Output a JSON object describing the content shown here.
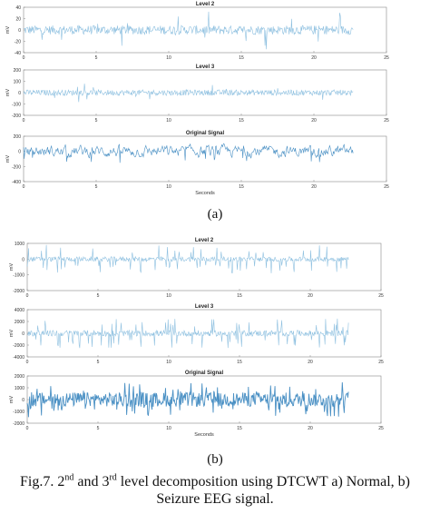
{
  "chart_data": [
    {
      "type": "line",
      "figure_part": "(a)",
      "panels": [
        {
          "title": "Level 2",
          "ylabel": "mV",
          "ylim": [
            -40,
            40
          ],
          "yticks": [
            "40",
            "20",
            "0",
            "-20",
            "-40"
          ],
          "xlim": [
            0,
            25
          ],
          "xticks": [
            "0",
            "5",
            "10",
            "15",
            "20",
            "25"
          ],
          "series": [
            {
              "values": {
                "duration_s": 22.7,
                "amplitude_typical": 8,
                "amplitude_peak": 35
              }
            }
          ]
        },
        {
          "title": "Level 3",
          "ylabel": "mV",
          "ylim": [
            -200,
            200
          ],
          "yticks": [
            "200",
            "100",
            "0",
            "-100",
            "-200"
          ],
          "xlim": [
            0,
            25
          ],
          "xticks": [
            "0",
            "5",
            "10",
            "15",
            "20",
            "25"
          ],
          "series": [
            {
              "values": {
                "duration_s": 22.7,
                "amplitude_typical": 25,
                "amplitude_peak": 90
              }
            }
          ]
        },
        {
          "title": "Original Signal",
          "ylabel": "mV",
          "ylim": [
            -400,
            200
          ],
          "yticks": [
            "200",
            "0",
            "-200",
            "-400"
          ],
          "xlim": [
            0,
            25
          ],
          "xticks": [
            "0",
            "5",
            "10",
            "15",
            "20",
            "25"
          ],
          "xlabel": "Seconds",
          "series": [
            {
              "values": {
                "duration_s": 22.7,
                "amplitude_typical": 60,
                "amplitude_peak": 160
              }
            }
          ]
        }
      ]
    },
    {
      "type": "line",
      "figure_part": "(b)",
      "panels": [
        {
          "title": "Level 2",
          "ylabel": "mV",
          "ylim": [
            -2000,
            1000
          ],
          "yticks": [
            "1000",
            "0",
            "-1000",
            "-2000"
          ],
          "xlim": [
            0,
            25
          ],
          "xticks": [
            "0",
            "5",
            "10",
            "15",
            "20",
            "25"
          ],
          "series": [
            {
              "values": {
                "duration_s": 22.7,
                "amplitude_typical": 150,
                "amplitude_peak": 900
              }
            }
          ]
        },
        {
          "title": "Level 3",
          "ylabel": "mV",
          "ylim": [
            -4000,
            4000
          ],
          "yticks": [
            "4000",
            "2000",
            "0",
            "-2000",
            "-4000"
          ],
          "xlim": [
            0,
            25
          ],
          "xticks": [
            "0",
            "5",
            "10",
            "15",
            "20",
            "25"
          ],
          "series": [
            {
              "values": {
                "duration_s": 22.7,
                "amplitude_typical": 500,
                "amplitude_peak": 2500
              }
            }
          ]
        },
        {
          "title": "Original Signal",
          "ylabel": "mV",
          "ylim": [
            -2000,
            2000
          ],
          "yticks": [
            "2000",
            "1000",
            "0",
            "-1000",
            "-2000"
          ],
          "xlim": [
            0,
            25
          ],
          "xticks": [
            "0",
            "5",
            "10",
            "15",
            "20",
            "25"
          ],
          "xlabel": "Seconds",
          "series": [
            {
              "values": {
                "duration_s": 22.7,
                "amplitude_typical": 600,
                "amplitude_peak": 1500
              }
            }
          ]
        }
      ]
    }
  ],
  "labels": {
    "a": "(a)",
    "b": "(b)"
  },
  "caption": {
    "prefix": "Fig.7. 2",
    "sup1": "nd",
    "mid": " and 3",
    "sup2": "rd",
    "suffix": " level decomposition using DTCWT a) Normal, b)",
    "line2": "Seizure EEG signal."
  },
  "colors": {
    "signal": "#4a90c4",
    "signal_light": "#8ec0e0",
    "axis": "#888888",
    "text": "#333333"
  }
}
